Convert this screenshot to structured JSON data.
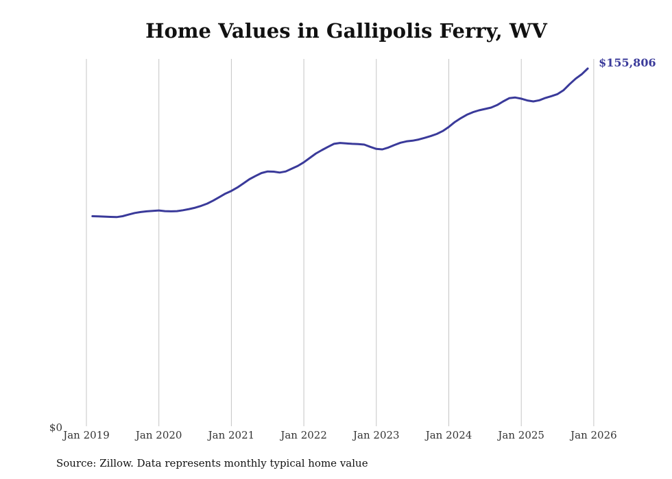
{
  "chart_data": {
    "type": "line",
    "title": "Home Values in Gallipolis Ferry, WV",
    "source": "Source: Zillow. Data represents monthly typical home value",
    "xlabel": "",
    "ylabel": "",
    "ylim": [
      0,
      160000
    ],
    "y_tick_label": "$0",
    "x_ticks": [
      "Jan 2019",
      "Jan 2020",
      "Jan 2021",
      "Jan 2022",
      "Jan 2023",
      "Jan 2024",
      "Jan 2025",
      "Jan 2026"
    ],
    "end_label": "$155,806",
    "grid": "vertical",
    "line_color": "#3a3a9a",
    "series": [
      {
        "name": "Typical home value",
        "start": "Feb 2019",
        "values": [
          91500,
          91400,
          91300,
          91200,
          91100,
          91500,
          92200,
          92900,
          93300,
          93600,
          93800,
          94000,
          93700,
          93600,
          93700,
          94100,
          94600,
          95200,
          96000,
          97000,
          98300,
          99800,
          101300,
          102500,
          104000,
          105800,
          107600,
          109000,
          110300,
          111000,
          110900,
          110500,
          111000,
          112200,
          113400,
          115000,
          116900,
          118800,
          120300,
          121700,
          123000,
          123400,
          123200,
          123000,
          122900,
          122700,
          121700,
          120800,
          120600,
          121400,
          122500,
          123500,
          124100,
          124400,
          124900,
          125600,
          126400,
          127300,
          128600,
          130400,
          132500,
          134200,
          135700,
          136800,
          137600,
          138200,
          138800,
          139900,
          141500,
          142900,
          143200,
          142700,
          141900,
          141500,
          142000,
          143000,
          143800,
          144700,
          146400,
          149000,
          151400,
          153300,
          155806
        ]
      }
    ]
  }
}
